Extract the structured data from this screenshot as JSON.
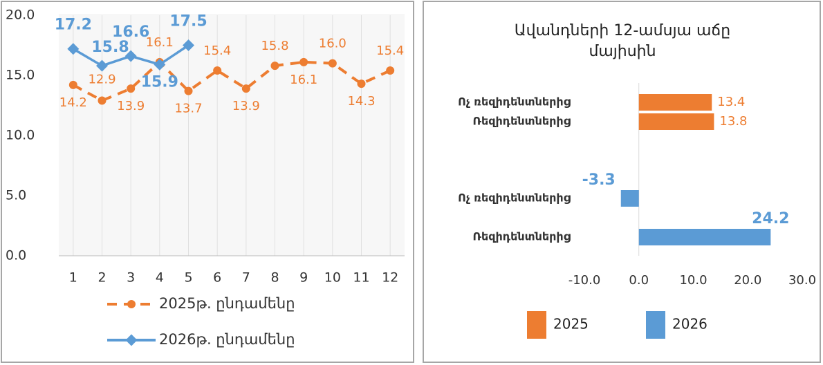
{
  "chart_data": [
    {
      "type": "line",
      "categories": [
        "1",
        "2",
        "3",
        "4",
        "5",
        "6",
        "7",
        "8",
        "9",
        "10",
        "11",
        "12"
      ],
      "ylim": [
        0,
        20
      ],
      "yticks": [
        {
          "value": 0,
          "label": "0.0"
        },
        {
          "value": 5,
          "label": "5.0"
        },
        {
          "value": 10,
          "label": "10.0"
        },
        {
          "value": 15,
          "label": "15.0"
        },
        {
          "value": 20,
          "label": "20.0"
        }
      ],
      "grid": true,
      "series": [
        {
          "name": "2025թ. ընդամենը",
          "color": "#ed7d31",
          "dashed": true,
          "values": [
            14.2,
            12.9,
            13.9,
            16.1,
            13.7,
            15.4,
            13.9,
            15.8,
            16.1,
            16.0,
            14.3,
            15.4
          ],
          "value_labels": [
            "14.2",
            "12.9",
            "13.9",
            "16.1",
            "13.7",
            "15.4",
            "13.9",
            "15.8",
            "16.1",
            "16.0",
            "14.3",
            "15.4"
          ]
        },
        {
          "name": "2026թ. ընդամենը",
          "color": "#5b9bd5",
          "dashed": false,
          "values": [
            17.2,
            15.8,
            16.6,
            15.9,
            17.5,
            null,
            null,
            null,
            null,
            null,
            null,
            null
          ],
          "value_labels": [
            "17.2",
            "15.8",
            "16.6",
            "15.9",
            "17.5",
            null,
            null,
            null,
            null,
            null,
            null,
            null
          ]
        }
      ]
    },
    {
      "type": "barh",
      "title": "Ավանդների 12-ամսյա աճը մայիսին",
      "categories": [
        "Ոչ ռեզիդենտներից",
        "Ռեզիդենտներից",
        "Ոչ ռեզիդենտներից",
        "Ռեզիդենտներից"
      ],
      "xlim": [
        -10,
        30
      ],
      "xticks": [
        {
          "value": -10,
          "label": "-10.0"
        },
        {
          "value": 0,
          "label": "0.0"
        },
        {
          "value": 10,
          "label": "10.0"
        },
        {
          "value": 20,
          "label": "20.0"
        },
        {
          "value": 30,
          "label": "30.0"
        }
      ],
      "series": [
        {
          "name": "2025",
          "color": "#ed7d31",
          "values": [
            13.4,
            13.8,
            null,
            null
          ]
        },
        {
          "name": "2026",
          "color": "#5b9bd5",
          "values": [
            null,
            null,
            -3.3,
            24.2
          ]
        }
      ]
    }
  ]
}
